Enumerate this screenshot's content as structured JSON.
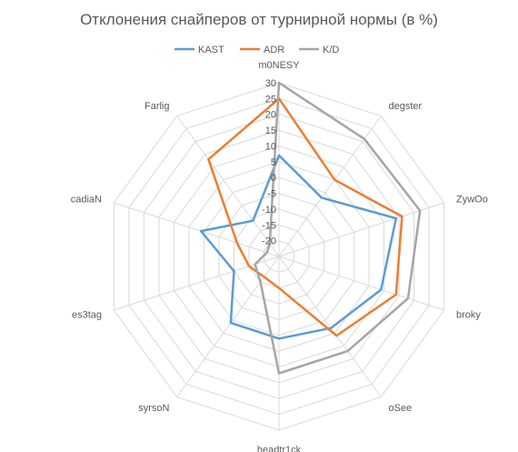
{
  "chart_data": {
    "type": "radar",
    "title": "Отклонения снайперов от турнирной нормы (в %)",
    "categories": [
      "m0NESY",
      "degster",
      "ZywOo",
      "broky",
      "oSee",
      "headtr1ck",
      "syrsoN",
      "es3tag",
      "cadiaN",
      "Farlig"
    ],
    "ticks": [
      "-20",
      "-15",
      "-10",
      "-5",
      "0",
      "5",
      "10",
      "15",
      "20",
      "25",
      "30"
    ],
    "rlim": [
      -25,
      30
    ],
    "grid": true,
    "legend_position": "top",
    "series": [
      {
        "name": "KAST",
        "color": "#5b9bd5",
        "values": [
          7,
          -2,
          14,
          9,
          3,
          1,
          1,
          -10,
          1,
          -11
        ]
      },
      {
        "name": "ADR",
        "color": "#ed7d31",
        "values": [
          25,
          5,
          16,
          14,
          6,
          -15,
          -17,
          -15,
          -11,
          13
        ]
      },
      {
        "name": "K/D",
        "color": "#a5a5a5",
        "values": [
          30,
          21,
          22,
          18,
          12,
          12,
          -15,
          -17,
          -21,
          -20
        ]
      }
    ]
  }
}
